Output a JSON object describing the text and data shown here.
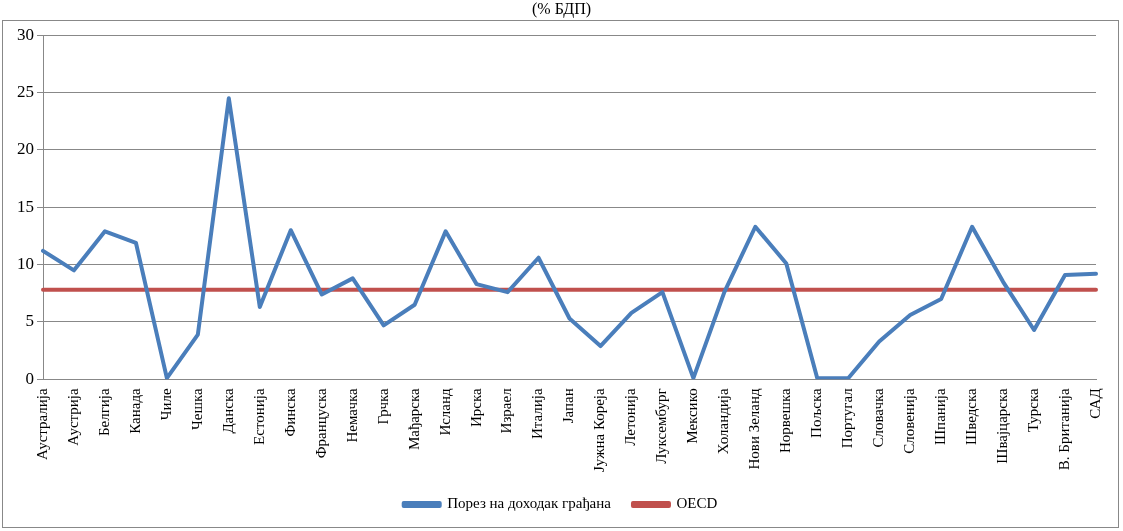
{
  "chart_data": {
    "type": "line",
    "title": "(% БДП)",
    "categories": [
      "Аустралија",
      "Аустрија",
      "Белгија",
      "Канада",
      "Чиле",
      "Чешка",
      "Данска",
      "Естонија",
      "Финска",
      "Француска",
      "Немачка",
      "Грчка",
      "Мађарска",
      "Исланд",
      "Ирска",
      "Израел",
      "Италија",
      "Јапан",
      "Јужна Кореја",
      "Летонија",
      "Луксембург",
      "Мексико",
      "Холандија",
      "Нови Зеланд",
      "Норвешка",
      "Пољска",
      "Португал",
      "Словачка",
      "Словенија",
      "Шпанија",
      "Шведска",
      "Швајцарска",
      "Турска",
      "В. Британија",
      "САД"
    ],
    "series": [
      {
        "name": "Порез на доходак грађана",
        "color": "#4a7ebb",
        "values": [
          11.2,
          9.5,
          12.9,
          11.9,
          0.1,
          3.9,
          24.5,
          6.3,
          13.0,
          7.4,
          8.8,
          4.7,
          6.5,
          12.9,
          8.3,
          7.6,
          10.6,
          5.3,
          2.9,
          5.8,
          7.6,
          0.1,
          7.6,
          13.3,
          10.1,
          0.1,
          0.1,
          3.3,
          5.6,
          7.0,
          13.3,
          8.5,
          4.3,
          9.1,
          9.2
        ]
      },
      {
        "name": "OECD",
        "color": "#c0504d",
        "values": [
          7.8,
          7.8,
          7.8,
          7.8,
          7.8,
          7.8,
          7.8,
          7.8,
          7.8,
          7.8,
          7.8,
          7.8,
          7.8,
          7.8,
          7.8,
          7.8,
          7.8,
          7.8,
          7.8,
          7.8,
          7.8,
          7.8,
          7.8,
          7.8,
          7.8,
          7.8,
          7.8,
          7.8,
          7.8,
          7.8,
          7.8,
          7.8,
          7.8,
          7.8,
          7.8
        ]
      }
    ],
    "ylim": [
      0,
      30
    ],
    "yticks": [
      0,
      5,
      10,
      15,
      20,
      25,
      30
    ],
    "grid": "y",
    "legend": "bottom",
    "marker": "none",
    "line_style": "solid"
  }
}
